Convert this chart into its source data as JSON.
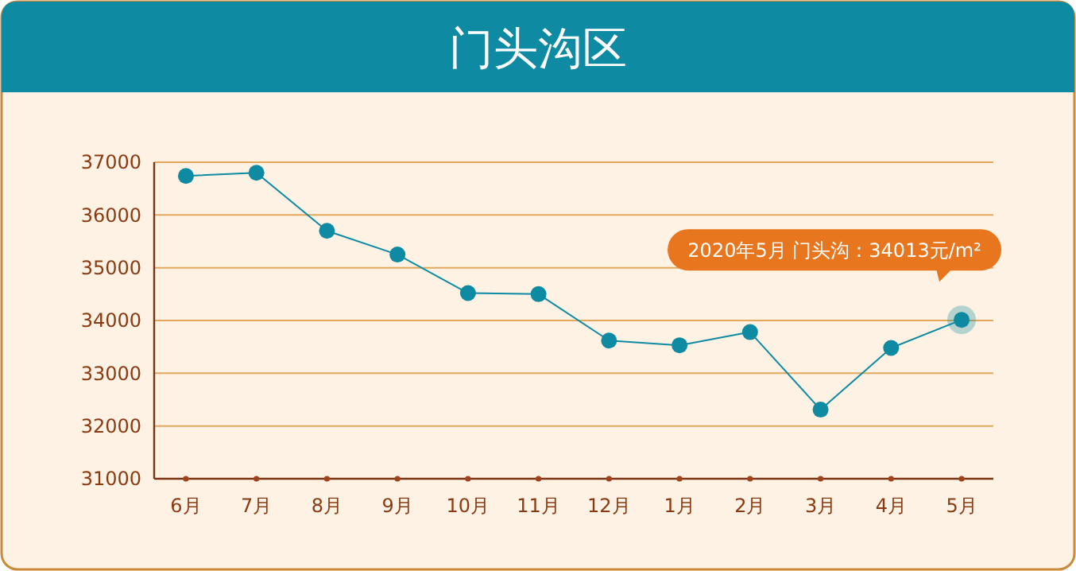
{
  "chart_data": {
    "type": "line",
    "title": "门头沟区",
    "categories": [
      "6月",
      "7月",
      "8月",
      "9月",
      "10月",
      "11月",
      "12月",
      "1月",
      "2月",
      "3月",
      "4月",
      "5月"
    ],
    "series": [
      {
        "color": "#0e8aa3",
        "values": [
          36740,
          36800,
          35700,
          35250,
          34520,
          34500,
          33620,
          33530,
          33780,
          32310,
          33480,
          34013
        ]
      }
    ],
    "ylim": [
      31000,
      37000
    ],
    "yticks": [
      31000,
      32000,
      33000,
      34000,
      35000,
      36000,
      37000
    ],
    "grid": "y",
    "marker": "circle",
    "line_style": "solid",
    "annotations": [
      "2020年5月 门头沟：34013元/m²"
    ]
  }
}
